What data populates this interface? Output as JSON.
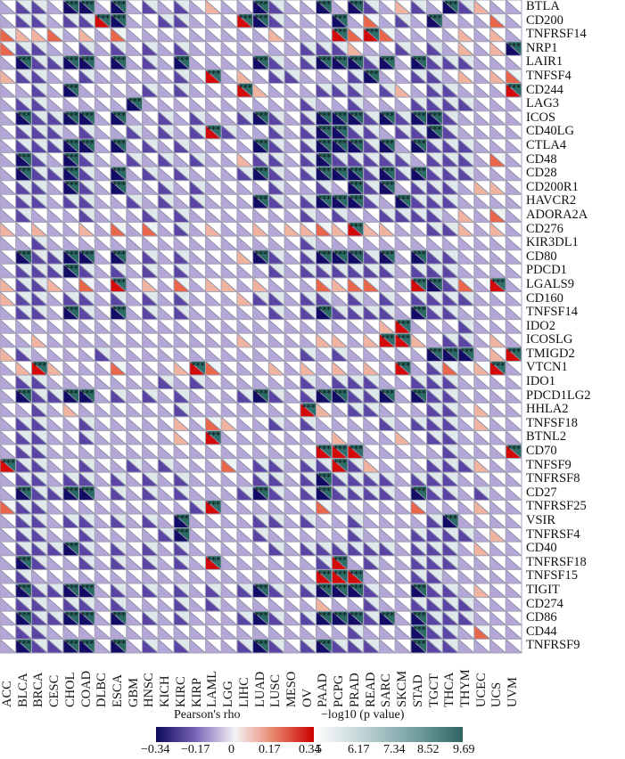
{
  "chart_data": {
    "type": "heatmap",
    "title": "",
    "description": "Split-cell heatmap: lower-left triangle = Pearson's rho, upper-right triangle = -log10(p value); stars mark significance",
    "columns": [
      "ACC",
      "BLCA",
      "BRCA",
      "CESC",
      "CHOL",
      "COAD",
      "DLBC",
      "ESCA",
      "GBM",
      "HNSC",
      "KICH",
      "KIRC",
      "KIRP",
      "LAML",
      "LGG",
      "LIHC",
      "LUAD",
      "LUSC",
      "MESO",
      "OV",
      "PAAD",
      "PCPG",
      "PRAD",
      "READ",
      "SARC",
      "SKCM",
      "STAD",
      "TGCT",
      "THCA",
      "THYM",
      "UCEC",
      "UCS",
      "UVM"
    ],
    "rows": [
      "BTLA",
      "CD200",
      "TNFRSF14",
      "NRP1",
      "LAIR1",
      "TNFSF4",
      "CD244",
      "LAG3",
      "ICOS",
      "CD40LG",
      "CTLA4",
      "CD48",
      "CD28",
      "CD200R1",
      "HAVCR2",
      "ADORA2A",
      "CD276",
      "KIR3DL1",
      "CD80",
      "PDCD1",
      "LGALS9",
      "CD160",
      "TNFSF14",
      "IDO2",
      "ICOSLG",
      "TMIGD2",
      "VTCN1",
      "IDO1",
      "PDCD1LG2",
      "HHLA2",
      "TNFSF18",
      "BTNL2",
      "CD70",
      "TNFSF9",
      "TNFRSF8",
      "CD27",
      "TNFRSF25",
      "VSIR",
      "TNFRSF4",
      "CD40",
      "TNFRSF18",
      "TNFSF15",
      "TIGIT",
      "CD274",
      "CD86",
      "CD44",
      "TNFRSF9"
    ],
    "rho_codes_legend": {
      "N": -0.34,
      "n": -0.22,
      "l": -0.1,
      "0": 0,
      "r": 0.1,
      "R": 0.22,
      "X": 0.34
    },
    "rho_matrix": [
      "lnnlNNlNlnlnlrllNnllNlNnlrnlNnrll",
      "lnnlnnXNllnnlllXNnlllNlRlnlNlllRl",
      "RrrRlrlRlllllllllrlllXRXRllllrlrl",
      "RnnllnlnlnlnlllllllnnnrllnlnlrlrN",
      "lNnnNNlNlnlNllllNnlnNNNnNlNnnnlll",
      "rnnllnlllllnlXlrlnnlllnNllnnlrlrR",
      "llnlNllllnlnlllXrlllnnnlnrlnnlllX",
      "lnnlllllNllllllllllnllnlllnnnnlll",
      "lNnnNNlNllnlnllnNnlnNNNnNnNNnllll",
      "lnnnlnllnlnlnXnllnlnNNnnlnnNnllll",
      "lnnnNNlNlnlnllllNnlnNNNnNlNnnnlll",
      "lNnlNnllnlnlnllrnnlnNnnnnnlnnnlRl",
      "lNnnNnlNlnlnlllnNnlnNNNnNnNnnnlll",
      "lnnlNnlNllnlnllllnllnlNnNlnnnlrrl",
      "lnnlnnllnlnlnlllNnlnNNNnlNnnnllll",
      "lnlllnlllnlnlllllllnlnllnnnnlrlRl",
      "rlrllrlRlRlnlrllrlrrRrXrrllnnrlrl",
      "llnllllllllllllllllnlllllllllllll",
      "lNnnNNlNlnlnlllrNnlnNNNnNlNnnllll",
      "lnnnNnlnlnlnlllllnlnnnnnnlnnnllll",
      "rnnrlRlXlrlRlrrlrlllRrRRllXNnRlXl",
      "rnnlnnlnlnlnlllrnnlnnlnlnlnnnnlll",
      "lnnlNnlNlnlnlllllnlnNnnnnlNnnllll",
      "llllllllllllllllllllllllrXlllnlll",
      "llrllllllllllllrllllrrlrXXrlnnlrl",
      "rnllllnllllllllllllnlnlllllNNNlrX",
      "lrXrlllRlllrXRlllrlrlrlrlXlnRlrXl",
      "lnnlllllllnlnllllllnlnnnllnnnllll",
      "lNnnNNlnlnlnlllnNnlnNNnnNlNnnllll",
      "llnlrllllllnlllllllXrlnnlllnnlrll",
      "lnnllnlllllrlRrllnlnllllnlnnnlrll",
      "lnnllnlllllrlXlllllllrlllrlnnllll",
      "lnnlllllllllllllllllXXXlllllnlllX",
      "XnnllnllnlnlllRlnnlnnXnrlllnnnrll",
      "lnnlnnlnlnlnllllnnlnNnnnnlnnnllll",
      "lNnnNNlnlnlnlllnNnlnNnnnnlNnnlnll",
      "RnnlllllllllnXllllllRlllllRlllrll",
      "lnnlnnlnlnlNllllnnlnllnllllnNllll",
      "lnnllnllllnNllllnlllllnlllnnnnlrl",
      "lnnnNnlnlnlnlllllnlnnnnnnlnnnlrll",
      "lNnllnlnlnlnlXllllllnXlnllnnnllll",
      "lnllllllllllllllllllXXXlllnnlllll",
      "lNnnNNlnlnlnlnlnNnlnNNNnllNnnlrll",
      "lnnlnnlnlllnlnllllllrllnllnnnnlll",
      "lNnnNNlNlnlnlllnNnlnNNNnNlNnnnlll",
      "lnnlllllllllllllllllllnlllNnnlRll",
      "lNnnNNlNlnlnlllnNnlnNnnnllNnnllll"
    ],
    "legend": [
      {
        "title": "Pearson's rho",
        "ticks": [
          "−0.34",
          "−0.17",
          "0",
          "0.17",
          "0.34"
        ],
        "colors": [
          "#0c0a5a",
          "#7a65b8",
          "#f4f2f6",
          "#e8836a",
          "#cc0000"
        ]
      },
      {
        "title": "−log10 (p value)",
        "ticks": [
          "5",
          "6.17",
          "7.34",
          "8.52",
          "9.69"
        ],
        "colors": [
          "#ffffff",
          "#a8c4c8",
          "#2e6e6c"
        ]
      }
    ]
  },
  "legend": {
    "rho_title": "Pearson's rho",
    "rho_ticks": [
      "−0.34",
      "−0.17",
      "0",
      "0.17",
      "0.34"
    ],
    "p_title": "−log10 (p value)",
    "p_ticks": [
      "5",
      "6.17",
      "7.34",
      "8.52",
      "9.69"
    ]
  }
}
